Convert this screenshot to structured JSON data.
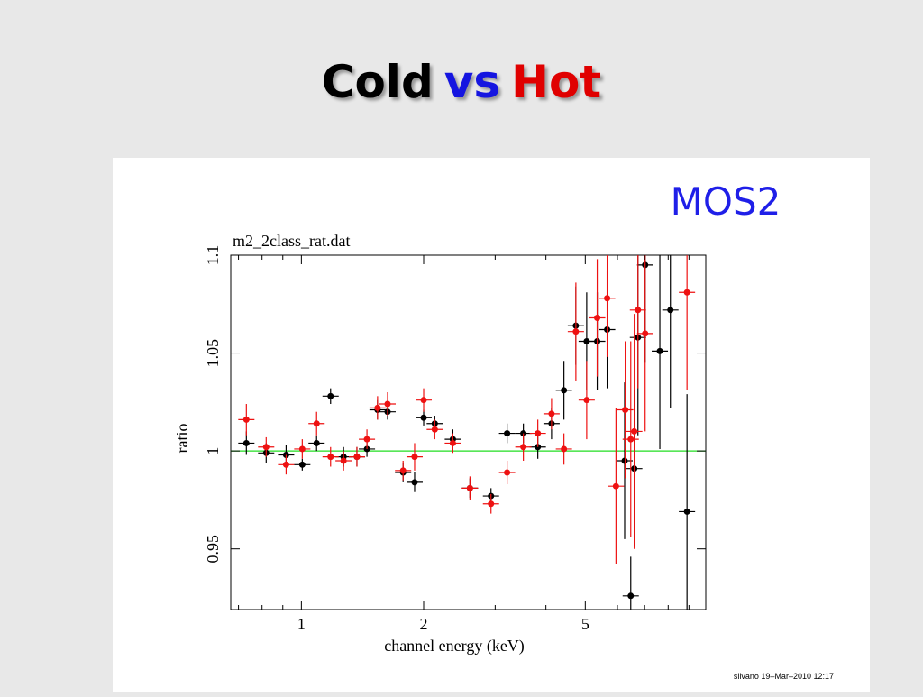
{
  "title_parts": [
    {
      "text": "Cold",
      "color": "#000000"
    },
    {
      "text": "vs",
      "color": "#1515e0"
    },
    {
      "text": "Hot",
      "color": "#e00000"
    }
  ],
  "chart_data": {
    "type": "scatter",
    "label": "MOS2",
    "label_color": "#1f1fe8",
    "title": "m2_2class_rat.dat",
    "x_label": "channel energy (keV)",
    "y_label": "ratio",
    "x_log": true,
    "xlim": [
      0.67,
      9.9
    ],
    "xticks": [
      1,
      2,
      5
    ],
    "xminorticks": [
      0.7,
      0.8,
      0.9,
      3,
      4,
      6,
      7,
      8,
      9
    ],
    "ylim": [
      0.919,
      1.1
    ],
    "yticks": [
      0.95,
      1,
      1.05,
      1.1
    ],
    "hline": {
      "value": 1,
      "color": "#22dd22"
    },
    "series": [
      {
        "color": "#000000",
        "x": [
          0.732,
          0.819,
          0.917,
          1.005,
          1.09,
          1.18,
          1.27,
          1.37,
          1.45,
          1.54,
          1.63,
          1.78,
          1.9,
          2.0,
          2.13,
          2.36,
          2.6,
          2.93,
          3.21,
          3.52,
          3.82,
          4.13,
          4.43,
          4.74,
          5.04,
          5.35,
          5.66,
          6.25,
          6.47,
          6.6,
          6.74,
          7.02,
          7.63,
          8.1,
          8.9
        ],
        "values": [
          1.004,
          0.999,
          0.998,
          0.993,
          1.004,
          1.028,
          0.997,
          0.997,
          1.001,
          1.021,
          1.02,
          0.989,
          0.984,
          1.017,
          1.014,
          1.006,
          0.981,
          0.977,
          1.009,
          1.009,
          1.002,
          1.014,
          1.031,
          1.064,
          1.056,
          1.056,
          1.062,
          0.995,
          0.926,
          0.991,
          1.058,
          1.095,
          1.051,
          1.072,
          0.969
        ],
        "yerr": [
          0.006,
          0.005,
          0.005,
          0.003,
          0.004,
          0.004,
          0.005,
          0.005,
          0.004,
          0.005,
          0.004,
          0.005,
          0.005,
          0.004,
          0.004,
          0.005,
          0.005,
          0.004,
          0.005,
          0.005,
          0.006,
          0.008,
          0.015,
          0.02,
          0.025,
          0.025,
          0.03,
          0.04,
          0.02,
          0.04,
          0.05,
          0.05,
          0.05,
          0.05,
          0.06
        ]
      },
      {
        "color": "#ee1111",
        "x": [
          0.732,
          0.819,
          0.917,
          1.005,
          1.09,
          1.18,
          1.27,
          1.37,
          1.45,
          1.54,
          1.63,
          1.78,
          1.9,
          2.0,
          2.13,
          2.36,
          2.6,
          2.93,
          3.21,
          3.52,
          3.82,
          4.13,
          4.43,
          4.74,
          5.04,
          5.35,
          5.66,
          5.95,
          6.27,
          6.47,
          6.6,
          6.74,
          7.02,
          8.9
        ],
        "values": [
          1.016,
          1.002,
          0.993,
          1.001,
          1.014,
          0.997,
          0.995,
          0.997,
          1.006,
          1.022,
          1.024,
          0.99,
          0.997,
          1.026,
          1.011,
          1.004,
          0.981,
          0.973,
          0.989,
          1.002,
          1.009,
          1.019,
          1.001,
          1.061,
          1.026,
          1.068,
          1.078,
          0.982,
          1.021,
          1.006,
          1.01,
          1.072,
          1.06,
          1.081
        ],
        "yerr": [
          0.008,
          0.005,
          0.005,
          0.005,
          0.006,
          0.005,
          0.005,
          0.005,
          0.005,
          0.006,
          0.006,
          0.005,
          0.007,
          0.006,
          0.005,
          0.005,
          0.006,
          0.005,
          0.006,
          0.007,
          0.007,
          0.008,
          0.008,
          0.025,
          0.02,
          0.03,
          0.03,
          0.04,
          0.035,
          0.05,
          0.06,
          0.04,
          0.05,
          0.05
        ]
      }
    ]
  },
  "footer": "silvano 19–Mar–2010 12:17"
}
